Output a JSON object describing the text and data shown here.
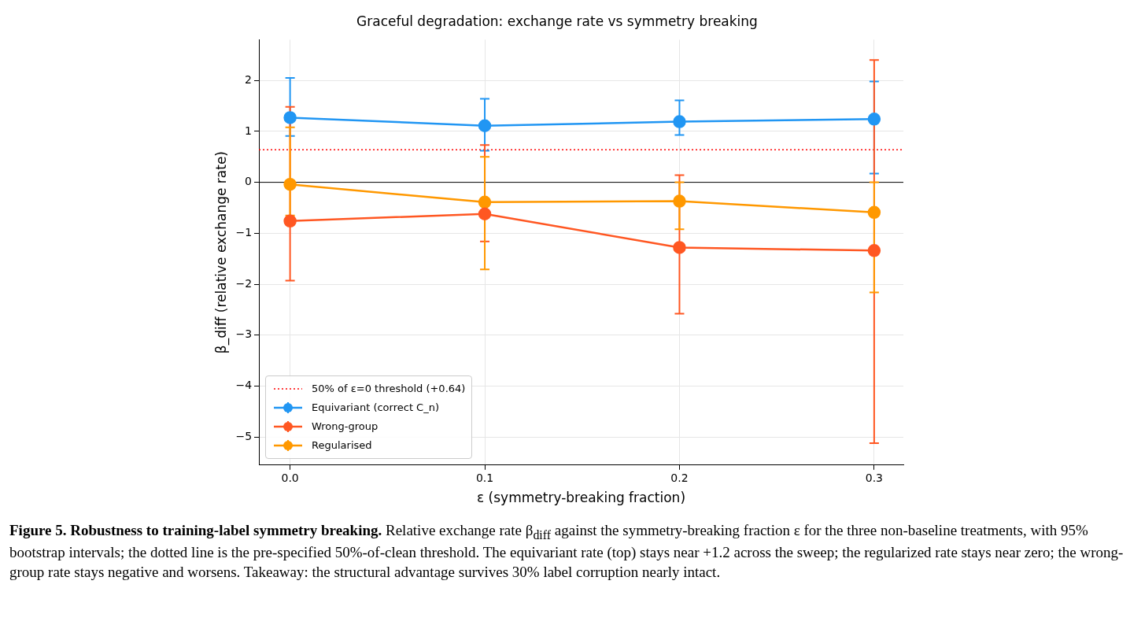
{
  "chart_data": {
    "type": "line",
    "title": "Graceful degradation: exchange rate vs symmetry breaking",
    "xlabel": "ε (symmetry-breaking fraction)",
    "ylabel": "β_diff (relative exchange rate)",
    "x": [
      0,
      0.1,
      0.2,
      0.3
    ],
    "series": [
      {
        "name": "Equivariant (correct C_n)",
        "color": "#2196f3",
        "values": [
          1.27,
          1.11,
          1.19,
          1.24
        ],
        "errors": [
          [
            0.91,
            2.05
          ],
          [
            0.62,
            1.64
          ],
          [
            0.93,
            1.61
          ],
          [
            0.17,
            1.98
          ]
        ]
      },
      {
        "name": "Wrong-group",
        "color": "#ff5722",
        "values": [
          -0.76,
          -0.62,
          -1.28,
          -1.34
        ],
        "errors": [
          [
            -1.93,
            1.48
          ],
          [
            -1.16,
            0.73
          ],
          [
            -2.58,
            0.14
          ],
          [
            -5.12,
            2.4
          ]
        ]
      },
      {
        "name": "Regularised",
        "color": "#ff9800",
        "values": [
          -0.04,
          -0.39,
          -0.37,
          -0.59
        ],
        "errors": [
          [
            -0.65,
            1.08
          ],
          [
            -1.71,
            0.5
          ],
          [
            -0.92,
            0.0
          ],
          [
            -2.16,
            0.0
          ]
        ]
      }
    ],
    "xlim": [
      -0.016,
      0.315
    ],
    "xticks": [
      {
        "value": 0,
        "label": "0.0"
      },
      0.1,
      0.2,
      0.3
    ],
    "ylim": [
      -5.55,
      2.8
    ],
    "yticks": [
      {
        "value": -5,
        "label": "−5"
      },
      {
        "value": -4,
        "label": "−4"
      },
      {
        "value": -3,
        "label": "−3"
      },
      {
        "value": -2,
        "label": "−2"
      },
      {
        "value": -1,
        "label": "−1"
      },
      0,
      1,
      2
    ],
    "ref_lines": [
      {
        "axis": "y",
        "value": 0.64,
        "label": "50% of ε=0 threshold (+0.64)",
        "color": "#ff0000",
        "line_style": "dotted"
      },
      {
        "axis": "y",
        "value": 0,
        "color": "#000000",
        "line_style": "solid"
      }
    ],
    "grid": true,
    "legend": "bottom left",
    "marker": "circle",
    "line_style": "solid",
    "annotations": [
      "Figure 5. Robustness to training-label symmetry breaking.",
      "Relative exchange rate β$_{diff}$ against the symmetry-breaking fraction ε for the three non-baseline treatments, with 95% bootstrap intervals; the dotted line is the pre-specified 50%-of-clean threshold. The equivariant rate (top) stays near +1.2 across the sweep; the regularized rate stays near zero; the wrong-group rate stays negative and worsens. Takeaway: the structural advantage survives 30% label corruption nearly intact."
    ]
  }
}
